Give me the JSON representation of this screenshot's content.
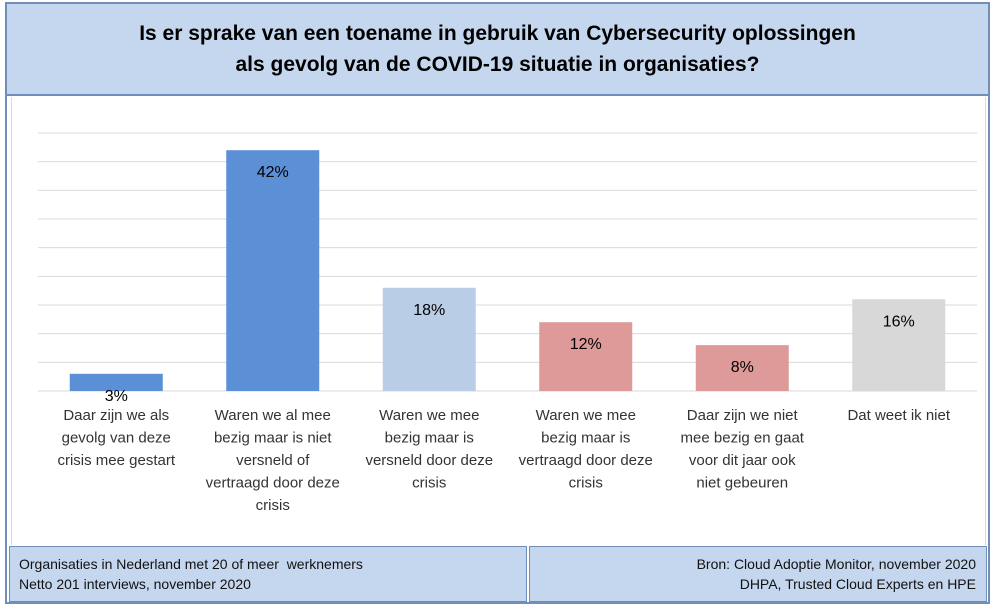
{
  "title": {
    "line1": "Is er sprake van een toename in gebruik van Cybersecurity oplossingen",
    "line2": "als gevolg van de COVID-19 situatie  in organisaties?"
  },
  "footer": {
    "left_line1": "Organisaties in Nederland met 20 of meer  werknemers",
    "left_line2": "Netto 201 interviews, november 2020",
    "right_line1": "Bron: Cloud Adoptie Monitor, november 2020",
    "right_line2": "DHPA, Trusted Cloud Experts en HPE"
  },
  "chart_data": {
    "type": "bar",
    "title": "Is er sprake van een toename in gebruik van Cybersecurity oplossingen als gevolg van de COVID-19 situatie in organisaties?",
    "categories": [
      [
        "Daar zijn we als",
        "gevolg van deze",
        "crisis mee gestart"
      ],
      [
        "Waren we al mee",
        "bezig maar is niet",
        "versneld of",
        "vertraagd door deze",
        "crisis"
      ],
      [
        "Waren we mee",
        "bezig maar is",
        "versneld door deze",
        "crisis"
      ],
      [
        "Waren we mee",
        "bezig maar is",
        "vertraagd door deze",
        "crisis"
      ],
      [
        "Daar zijn we niet",
        "mee bezig en gaat",
        "voor dit jaar ook",
        "niet gebeuren"
      ],
      [
        "Dat weet ik niet"
      ]
    ],
    "values": [
      3,
      42,
      18,
      12,
      8,
      16
    ],
    "data_labels": [
      "3%",
      "42%",
      "18%",
      "12%",
      "8%",
      "16%"
    ],
    "colors": [
      "#5b8fd6",
      "#5b8fd6",
      "#b9cde7",
      "#dd9a98",
      "#dd9a98",
      "#d8d8d8"
    ],
    "ylim": [
      0,
      45
    ],
    "grid": true,
    "gridline_step": 5,
    "legend": "none"
  }
}
